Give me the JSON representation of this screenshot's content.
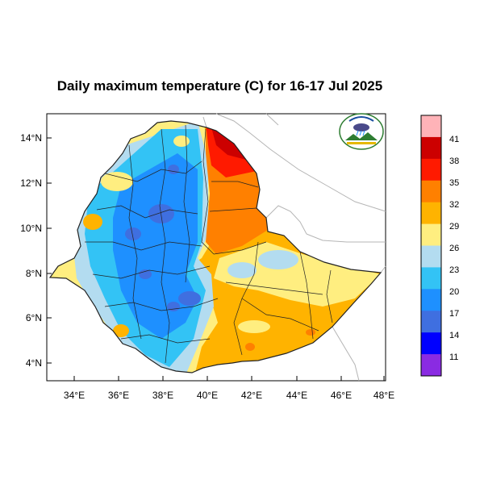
{
  "title": "Daily maximum temperature (C) for 16-17 Jul 2025",
  "logo": {
    "name": "ethiopian-meteorology-institute-logo",
    "text_top": "የኢትዮጵያ ሜቲዎሮሎጂ ኢንስቲትዩት",
    "text_bottom": "Ethiopian Meteorology Institute"
  },
  "map": {
    "x_ticks": [
      "34°E",
      "36°E",
      "38°E",
      "40°E",
      "42°E",
      "44°E",
      "46°E",
      "48°E"
    ],
    "y_ticks": [
      "14°N",
      "12°N",
      "10°N",
      "8°N",
      "6°N",
      "4°N"
    ]
  },
  "colorbar": {
    "labels": [
      "41",
      "38",
      "35",
      "32",
      "29",
      "26",
      "23",
      "20",
      "17",
      "14",
      "11"
    ],
    "colors": [
      "#ffb3b8",
      "#cc0000",
      "#ff1a00",
      "#ff8000",
      "#ffb300",
      "#ffee80",
      "#b3dcf0",
      "#33c3f5",
      "#1e90ff",
      "#3f6fe0",
      "#0000ff",
      "#8a2be2"
    ]
  },
  "chart_data": {
    "type": "heatmap",
    "title": "Daily maximum temperature (C) for 16-17 Jul 2025",
    "x_axis_ticks": [
      "34°E",
      "36°E",
      "38°E",
      "40°E",
      "42°E",
      "44°E",
      "46°E",
      "48°E"
    ],
    "y_axis_ticks": [
      "14°N",
      "12°N",
      "10°N",
      "8°N",
      "6°N",
      "4°N"
    ],
    "xlim": [
      33,
      48.2
    ],
    "ylim": [
      3.2,
      15
    ],
    "levels": [
      11,
      14,
      17,
      20,
      23,
      26,
      29,
      32,
      35,
      38,
      41
    ],
    "level_colors": [
      "#8a2be2",
      "#0000ff",
      "#3f6fe0",
      "#1e90ff",
      "#33c3f5",
      "#b3dcf0",
      "#ffee80",
      "#ffb300",
      "#ff8000",
      "#ff1a00",
      "#cc0000",
      "#ffb3b8"
    ]
  }
}
